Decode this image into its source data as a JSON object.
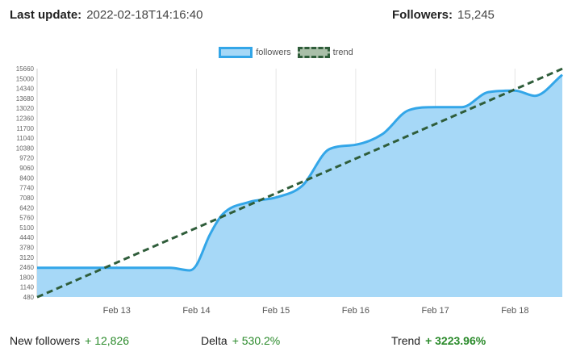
{
  "header": {
    "last_update_label": "Last update:",
    "last_update_value": "2022-02-18T14:16:40",
    "followers_label": "Followers:",
    "followers_value": "15,245"
  },
  "stats": {
    "new_followers_label": "New followers",
    "new_followers_value": "+ 12,826",
    "delta_label": "Delta",
    "delta_value": "+ 530.2%",
    "trend_label": "Trend",
    "trend_value": "+ 3223.96%"
  },
  "colors": {
    "followers_fill": "#a6d8f7",
    "followers_line": "#33a6e8",
    "trend_line": "#2f5d3a",
    "positive": "#2a8a2a"
  },
  "chart_data": {
    "type": "area",
    "legend": [
      "followers",
      "trend"
    ],
    "legend_position": "top-center",
    "grid": "vertical",
    "x_tick_labels": [
      "Feb 13",
      "Feb 14",
      "Feb 15",
      "Feb 16",
      "Feb 17",
      "Feb 18"
    ],
    "x_range": [
      "2022-02-12T00:00",
      "2022-02-18T14:16"
    ],
    "ylim": [
      480,
      15660
    ],
    "y_ticks": [
      480,
      1140,
      1800,
      2460,
      3120,
      3780,
      4440,
      5100,
      5760,
      6420,
      7080,
      7740,
      8400,
      9060,
      9720,
      10380,
      11040,
      11700,
      12360,
      13020,
      13680,
      14340,
      15000,
      15660
    ],
    "series": [
      {
        "name": "followers",
        "x": [
          "2022-02-12T00:00",
          "2022-02-12T08:00",
          "2022-02-12T16:00",
          "2022-02-13T00:00",
          "2022-02-13T08:00",
          "2022-02-13T16:00",
          "2022-02-13T22:00",
          "2022-02-14T00:00",
          "2022-02-14T04:00",
          "2022-02-14T08:00",
          "2022-02-14T16:00",
          "2022-02-15T00:00",
          "2022-02-15T08:00",
          "2022-02-15T16:00",
          "2022-02-16T00:00",
          "2022-02-16T08:00",
          "2022-02-16T16:00",
          "2022-02-17T00:00",
          "2022-02-17T08:00",
          "2022-02-17T16:00",
          "2022-02-18T00:00",
          "2022-02-18T06:00",
          "2022-02-18T14:16"
        ],
        "values": [
          2420,
          2420,
          2420,
          2420,
          2420,
          2420,
          2250,
          2600,
          4600,
          6000,
          6800,
          7100,
          7900,
          10300,
          10600,
          11300,
          12900,
          13100,
          13100,
          14100,
          14200,
          13850,
          15245
        ]
      },
      {
        "name": "trend",
        "x": [
          "2022-02-12T00:00",
          "2022-02-18T14:16"
        ],
        "values": [
          470,
          15650
        ]
      }
    ]
  }
}
